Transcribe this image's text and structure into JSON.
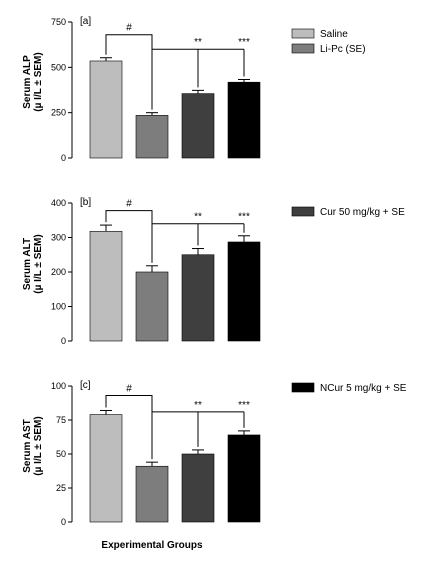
{
  "chart_data": [
    {
      "type": "bar",
      "panel_label": "[a]",
      "ylabel_line1": "Serum ALP",
      "ylabel_line2": "(µ I/L ± SEM)",
      "ylim": [
        0,
        750
      ],
      "yticks": [
        0,
        250,
        500,
        750
      ],
      "values": [
        535,
        235,
        355,
        418
      ],
      "errors": [
        18,
        15,
        18,
        15
      ],
      "colors": [
        "#bdbdbd",
        "#7d7d7d",
        "#3f3f3f",
        "#000000"
      ],
      "hash_label": "#",
      "hash_bracket": {
        "from": 0,
        "to": 1,
        "y": 680
      },
      "sig_bracket": {
        "from": 1,
        "y": 600,
        "ends": [
          2,
          3
        ],
        "labels": [
          "**",
          "***"
        ]
      }
    },
    {
      "type": "bar",
      "panel_label": "[b]",
      "ylabel_line1": "Serum ALT",
      "ylabel_line2": "(µ I/L ± SEM)",
      "ylim": [
        0,
        400
      ],
      "yticks": [
        0,
        100,
        200,
        300,
        400
      ],
      "values": [
        318,
        200,
        250,
        287
      ],
      "errors": [
        18,
        18,
        18,
        18
      ],
      "colors": [
        "#bdbdbd",
        "#7d7d7d",
        "#3f3f3f",
        "#000000"
      ],
      "hash_label": "#",
      "hash_bracket": {
        "from": 0,
        "to": 1,
        "y": 378
      },
      "sig_bracket": {
        "from": 1,
        "y": 340,
        "ends": [
          2,
          3
        ],
        "labels": [
          "**",
          "***"
        ]
      }
    },
    {
      "type": "bar",
      "panel_label": "[c]",
      "ylabel_line1": "Serum AST",
      "ylabel_line2": "(µ I/L ± SEM)",
      "ylim": [
        0,
        100
      ],
      "yticks": [
        0,
        25,
        50,
        75,
        100
      ],
      "values": [
        79,
        41,
        50,
        64
      ],
      "errors": [
        3,
        3,
        3,
        3
      ],
      "colors": [
        "#bdbdbd",
        "#7d7d7d",
        "#3f3f3f",
        "#000000"
      ],
      "hash_label": "#",
      "hash_bracket": {
        "from": 0,
        "to": 1,
        "y": 93
      },
      "sig_bracket": {
        "from": 1,
        "y": 81,
        "ends": [
          2,
          3
        ],
        "labels": [
          "**",
          "***"
        ]
      }
    }
  ],
  "legend": {
    "items": [
      {
        "label": "Saline",
        "color": "#bdbdbd"
      },
      {
        "label": "Li-Pc (SE)",
        "color": "#7d7d7d"
      },
      {
        "label": "Cur 50 mg/kg + SE",
        "color": "#3f3f3f"
      },
      {
        "label": "NCur 5 mg/kg + SE",
        "color": "#000000"
      }
    ]
  },
  "xlabel": "Experimental Groups"
}
